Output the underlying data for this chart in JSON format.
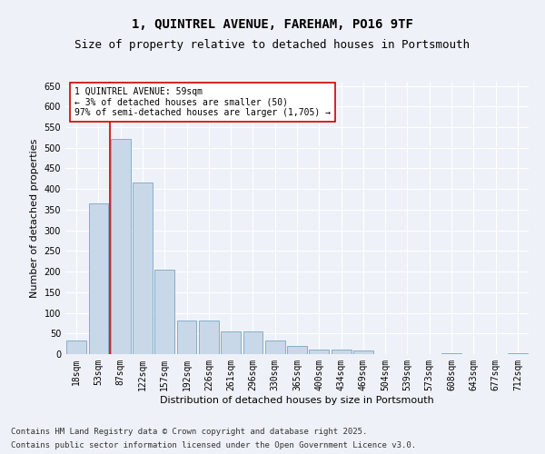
{
  "title_line1": "1, QUINTREL AVENUE, FAREHAM, PO16 9TF",
  "title_line2": "Size of property relative to detached houses in Portsmouth",
  "xlabel": "Distribution of detached houses by size in Portsmouth",
  "ylabel": "Number of detached properties",
  "categories": [
    "18sqm",
    "53sqm",
    "87sqm",
    "122sqm",
    "157sqm",
    "192sqm",
    "226sqm",
    "261sqm",
    "296sqm",
    "330sqm",
    "365sqm",
    "400sqm",
    "434sqm",
    "469sqm",
    "504sqm",
    "539sqm",
    "573sqm",
    "608sqm",
    "643sqm",
    "677sqm",
    "712sqm"
  ],
  "values": [
    33,
    365,
    522,
    415,
    205,
    82,
    82,
    55,
    55,
    33,
    20,
    10,
    10,
    8,
    0,
    0,
    0,
    2,
    0,
    0,
    3
  ],
  "bar_color": "#c8d8e8",
  "bar_edge_color": "#6699bb",
  "highlight_line_color": "#cc0000",
  "annotation_text": "1 QUINTREL AVENUE: 59sqm\n← 3% of detached houses are smaller (50)\n97% of semi-detached houses are larger (1,705) →",
  "annotation_box_color": "#ffffff",
  "annotation_box_edge": "#cc0000",
  "ylim": [
    0,
    660
  ],
  "yticks": [
    0,
    50,
    100,
    150,
    200,
    250,
    300,
    350,
    400,
    450,
    500,
    550,
    600,
    650
  ],
  "footer_line1": "Contains HM Land Registry data © Crown copyright and database right 2025.",
  "footer_line2": "Contains public sector information licensed under the Open Government Licence v3.0.",
  "background_color": "#eef2f8",
  "plot_bg_color": "#eef2f8",
  "grid_color": "#ffffff",
  "title_fontsize": 10,
  "subtitle_fontsize": 9,
  "axis_label_fontsize": 8,
  "tick_fontsize": 7,
  "annotation_fontsize": 7,
  "footer_fontsize": 6.5
}
